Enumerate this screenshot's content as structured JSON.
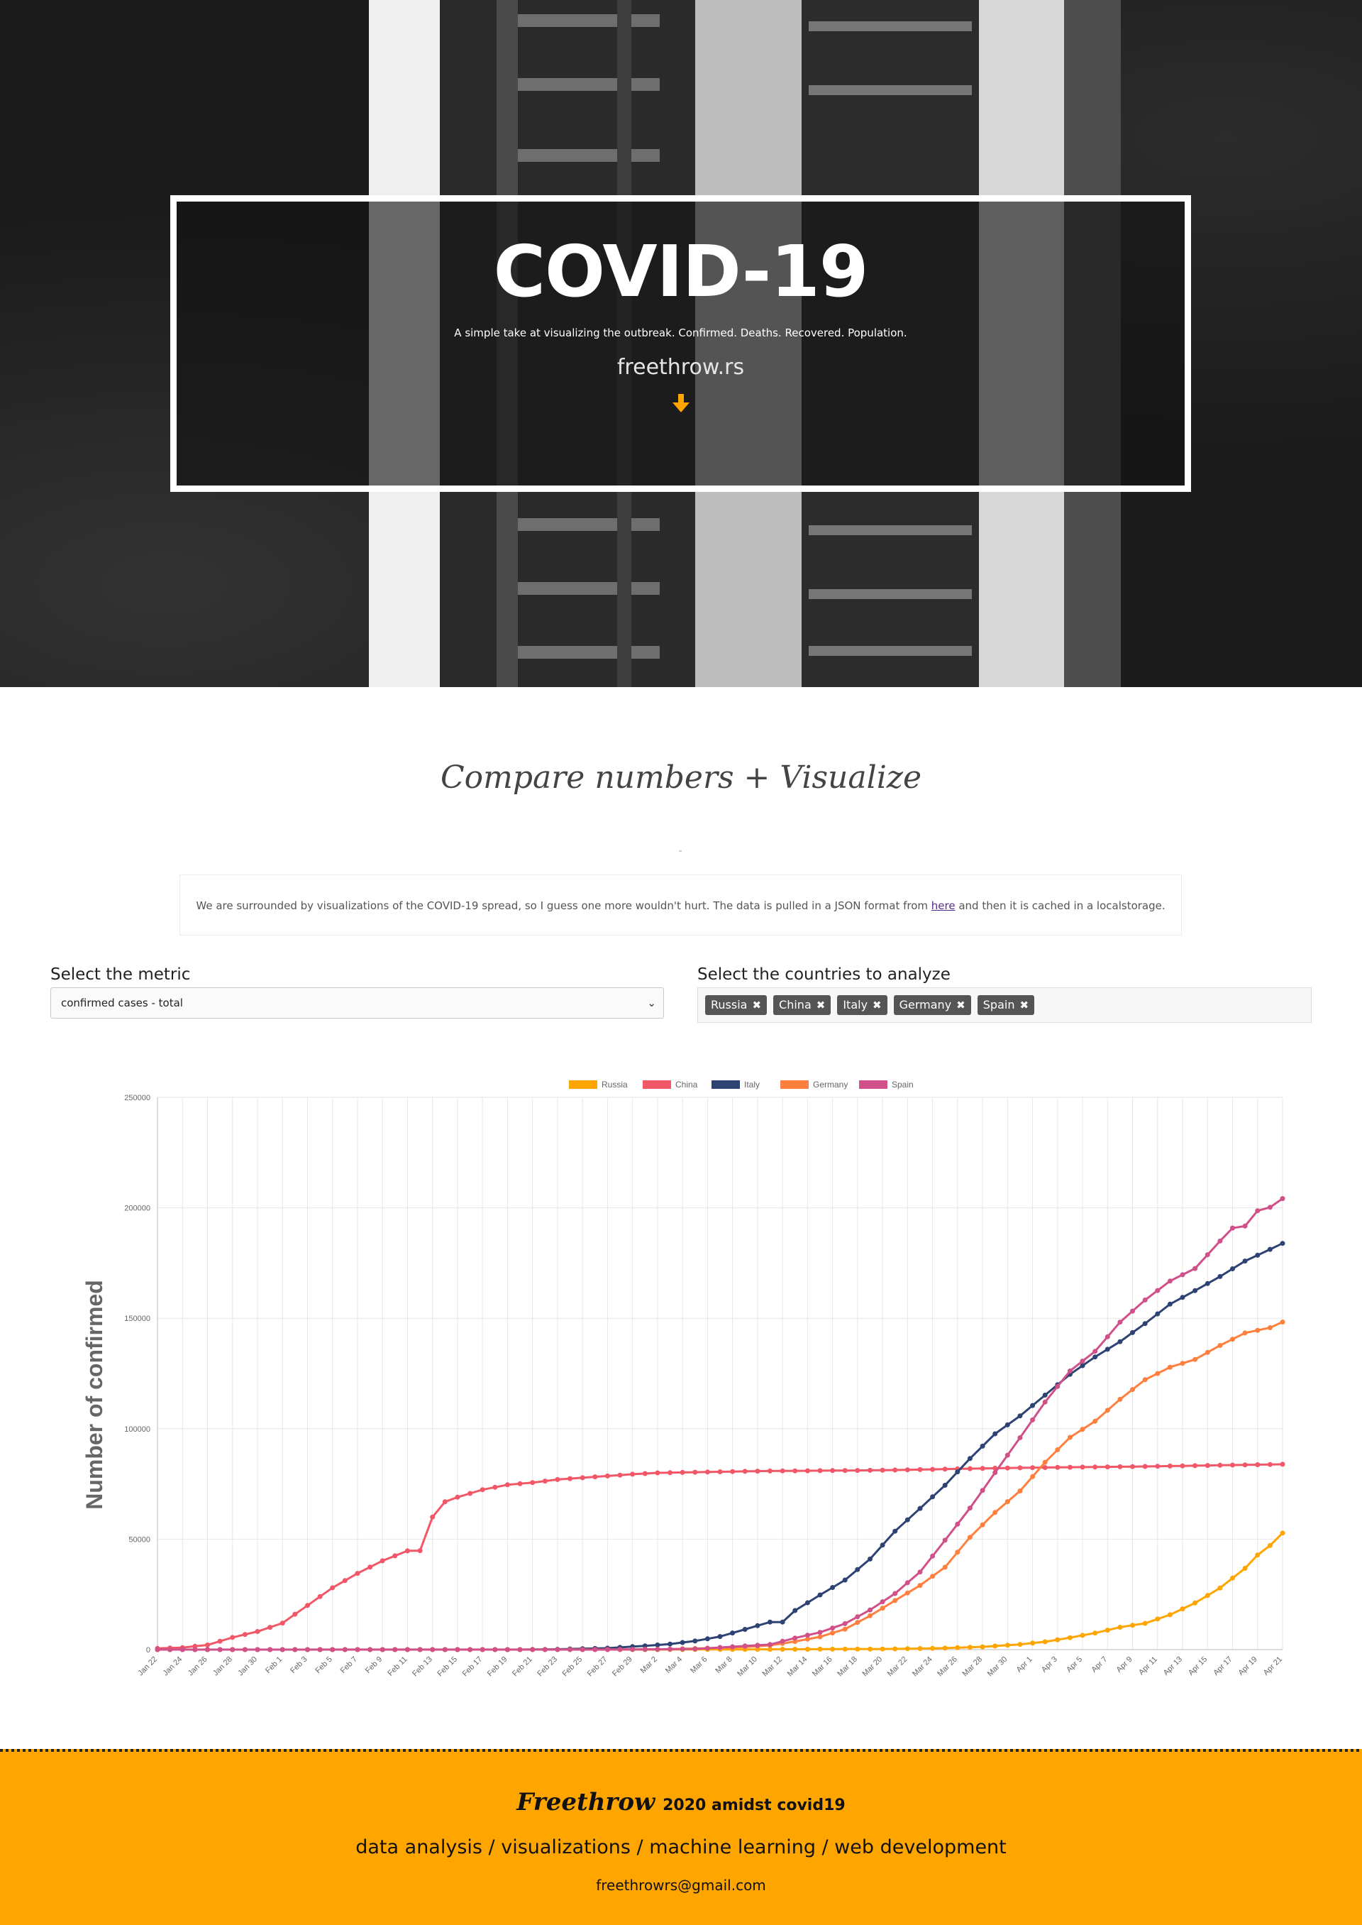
{
  "hero": {
    "title": "COVID-19",
    "subtitle": "A simple take at visualizing the outbreak. Confirmed. Deaths. Recovered. Population.",
    "site": "freethrow.rs"
  },
  "section": {
    "title": "Compare numbers + Visualize",
    "note_before": "We are surrounded by visualizations of the COVID-19 spread, so I guess one more wouldn't hurt. The data is pulled in a JSON format from ",
    "note_link": "here",
    "note_after": " and then it is cached in a localstorage."
  },
  "controls": {
    "metric_label": "Select the metric",
    "metric_value": "confirmed cases - total",
    "countries_label": "Select the countries to analyze",
    "countries": [
      "Russia",
      "China",
      "Italy",
      "Germany",
      "Spain"
    ]
  },
  "chart_data": {
    "type": "line",
    "ylabel": "Number of confirmed",
    "ylim": [
      0,
      250000
    ],
    "yticks": [
      "0",
      "50000",
      "100000",
      "150000",
      "200000",
      "250000"
    ],
    "grid": true,
    "legend": "top",
    "x_start": "Jan 22",
    "x_end": "Apr 21",
    "xtick_labels": [
      "Jan 22",
      "Jan 24",
      "Jan 26",
      "Jan 28",
      "Jan 30",
      "Feb 1",
      "Feb 3",
      "Feb 5",
      "Feb 7",
      "Feb 9",
      "Feb 11",
      "Feb 13",
      "Feb 15",
      "Feb 17",
      "Feb 19",
      "Feb 21",
      "Feb 23",
      "Feb 25",
      "Feb 27",
      "Feb 29",
      "Mar 2",
      "Mar 4",
      "Mar 6",
      "Mar 8",
      "Mar 10",
      "Mar 12",
      "Mar 14",
      "Mar 16",
      "Mar 18",
      "Mar 20",
      "Mar 22",
      "Mar 24",
      "Mar 26",
      "Mar 28",
      "Mar 30",
      "Apr 1",
      "Apr 3",
      "Apr 5",
      "Apr 7",
      "Apr 9",
      "Apr 11",
      "Apr 13",
      "Apr 15",
      "Apr 17",
      "Apr 19",
      "Apr 21"
    ],
    "series": [
      {
        "name": "Russia",
        "color": "#ffa500",
        "points": [
          [
            "Jan 22",
            0
          ],
          [
            "Mar 1",
            0
          ],
          [
            "Mar 20",
            250
          ],
          [
            "Mar 25",
            660
          ],
          [
            "Mar 28",
            1260
          ],
          [
            "Mar 31",
            2340
          ],
          [
            "Apr 2",
            3550
          ],
          [
            "Apr 4",
            5390
          ],
          [
            "Apr 6",
            7500
          ],
          [
            "Apr 8",
            10130
          ],
          [
            "Apr 10",
            11900
          ],
          [
            "Apr 12",
            15770
          ],
          [
            "Apr 14",
            21100
          ],
          [
            "Apr 16",
            27900
          ],
          [
            "Apr 18",
            36790
          ],
          [
            "Apr 19",
            42850
          ],
          [
            "Apr 20",
            47120
          ],
          [
            "Apr 21",
            52760
          ]
        ]
      },
      {
        "name": "China",
        "color": "#f25767",
        "points": [
          [
            "Jan 22",
            550
          ],
          [
            "Jan 24",
            900
          ],
          [
            "Jan 26",
            2100
          ],
          [
            "Jan 28",
            5500
          ],
          [
            "Jan 30",
            8200
          ],
          [
            "Feb 1",
            12000
          ],
          [
            "Feb 3",
            20000
          ],
          [
            "Feb 5",
            28000
          ],
          [
            "Feb 7",
            34500
          ],
          [
            "Feb 9",
            40200
          ],
          [
            "Feb 11",
            44700
          ],
          [
            "Feb 12",
            44800
          ],
          [
            "Feb 13",
            60000
          ],
          [
            "Feb 14",
            66900
          ],
          [
            "Feb 15",
            69000
          ],
          [
            "Feb 17",
            72400
          ],
          [
            "Feb 19",
            74600
          ],
          [
            "Feb 21",
            75600
          ],
          [
            "Feb 23",
            77000
          ],
          [
            "Feb 25",
            77800
          ],
          [
            "Feb 27",
            78600
          ],
          [
            "Feb 29",
            79400
          ],
          [
            "Mar 2",
            80000
          ],
          [
            "Mar 10",
            80800
          ],
          [
            "Mar 20",
            81200
          ],
          [
            "Mar 31",
            82300
          ],
          [
            "Apr 10",
            82900
          ],
          [
            "Apr 21",
            83900
          ]
        ]
      },
      {
        "name": "Italy",
        "color": "#2e4374",
        "points": [
          [
            "Jan 22",
            0
          ],
          [
            "Feb 20",
            3
          ],
          [
            "Feb 23",
            155
          ],
          [
            "Feb 27",
            650
          ],
          [
            "Mar 1",
            1700
          ],
          [
            "Mar 3",
            2500
          ],
          [
            "Mar 5",
            3900
          ],
          [
            "Mar 7",
            5900
          ],
          [
            "Mar 9",
            9170
          ],
          [
            "Mar 11",
            12460
          ],
          [
            "Mar 12",
            12460
          ],
          [
            "Mar 13",
            17660
          ],
          [
            "Mar 15",
            24750
          ],
          [
            "Mar 17",
            31500
          ],
          [
            "Mar 19",
            41000
          ],
          [
            "Mar 21",
            53600
          ],
          [
            "Mar 23",
            63900
          ],
          [
            "Mar 25",
            74400
          ],
          [
            "Mar 27",
            86500
          ],
          [
            "Mar 29",
            97700
          ],
          [
            "Mar 31",
            105800
          ],
          [
            "Apr 2",
            115200
          ],
          [
            "Apr 4",
            124600
          ],
          [
            "Apr 6",
            132500
          ],
          [
            "Apr 8",
            139400
          ],
          [
            "Apr 10",
            147600
          ],
          [
            "Apr 12",
            156400
          ],
          [
            "Apr 14",
            162500
          ],
          [
            "Apr 16",
            168900
          ],
          [
            "Apr 18",
            175900
          ],
          [
            "Apr 20",
            181200
          ],
          [
            "Apr 21",
            183900
          ]
        ]
      },
      {
        "name": "Germany",
        "color": "#ff7f3f",
        "points": [
          [
            "Jan 22",
            0
          ],
          [
            "Feb 27",
            46
          ],
          [
            "Mar 3",
            196
          ],
          [
            "Mar 7",
            800
          ],
          [
            "Mar 9",
            1176
          ],
          [
            "Mar 11",
            1900
          ],
          [
            "Mar 13",
            3675
          ],
          [
            "Mar 15",
            5795
          ],
          [
            "Mar 17",
            9257
          ],
          [
            "Mar 19",
            15320
          ],
          [
            "Mar 21",
            22213
          ],
          [
            "Mar 23",
            29056
          ],
          [
            "Mar 25",
            37323
          ],
          [
            "Mar 27",
            50871
          ],
          [
            "Mar 29",
            62095
          ],
          [
            "Mar 31",
            71808
          ],
          [
            "Apr 2",
            84794
          ],
          [
            "Apr 4",
            96092
          ],
          [
            "Apr 6",
            103375
          ],
          [
            "Apr 8",
            113296
          ],
          [
            "Apr 10",
            122171
          ],
          [
            "Apr 12",
            127854
          ],
          [
            "Apr 14",
            131359
          ],
          [
            "Apr 16",
            137698
          ],
          [
            "Apr 18",
            143342
          ],
          [
            "Apr 20",
            145742
          ],
          [
            "Apr 21",
            148291
          ]
        ]
      },
      {
        "name": "Spain",
        "color": "#d0508a",
        "points": [
          [
            "Jan 22",
            0
          ],
          [
            "Feb 27",
            15
          ],
          [
            "Mar 1",
            84
          ],
          [
            "Mar 5",
            282
          ],
          [
            "Mar 9",
            1639
          ],
          [
            "Mar 11",
            2277
          ],
          [
            "Mar 13",
            5232
          ],
          [
            "Mar 15",
            7798
          ],
          [
            "Mar 17",
            11748
          ],
          [
            "Mar 19",
            17963
          ],
          [
            "Mar 21",
            25374
          ],
          [
            "Mar 23",
            35136
          ],
          [
            "Mar 25",
            49515
          ],
          [
            "Mar 27",
            64059
          ],
          [
            "Mar 29",
            80110
          ],
          [
            "Mar 31",
            95923
          ],
          [
            "Apr 2",
            112065
          ],
          [
            "Apr 4",
            126168
          ],
          [
            "Apr 6",
            135032
          ],
          [
            "Apr 8",
            148220
          ],
          [
            "Apr 10",
            158273
          ],
          [
            "Apr 12",
            166831
          ],
          [
            "Apr 14",
            172541
          ],
          [
            "Apr 16",
            184948
          ],
          [
            "Apr 17",
            190839
          ],
          [
            "Apr 18",
            191726
          ],
          [
            "Apr 19",
            198674
          ],
          [
            "Apr 20",
            200210
          ],
          [
            "Apr 21",
            204178
          ]
        ]
      }
    ]
  },
  "footer": {
    "brand": "Freethrow",
    "brand_tail": "2020 amidst covid19",
    "tagline": "data analysis / visualizations / machine learning / web development",
    "email": "freethrowrs@gmail.com"
  },
  "colors": {
    "accent": "#ffa500",
    "tag_bg": "#555555"
  }
}
